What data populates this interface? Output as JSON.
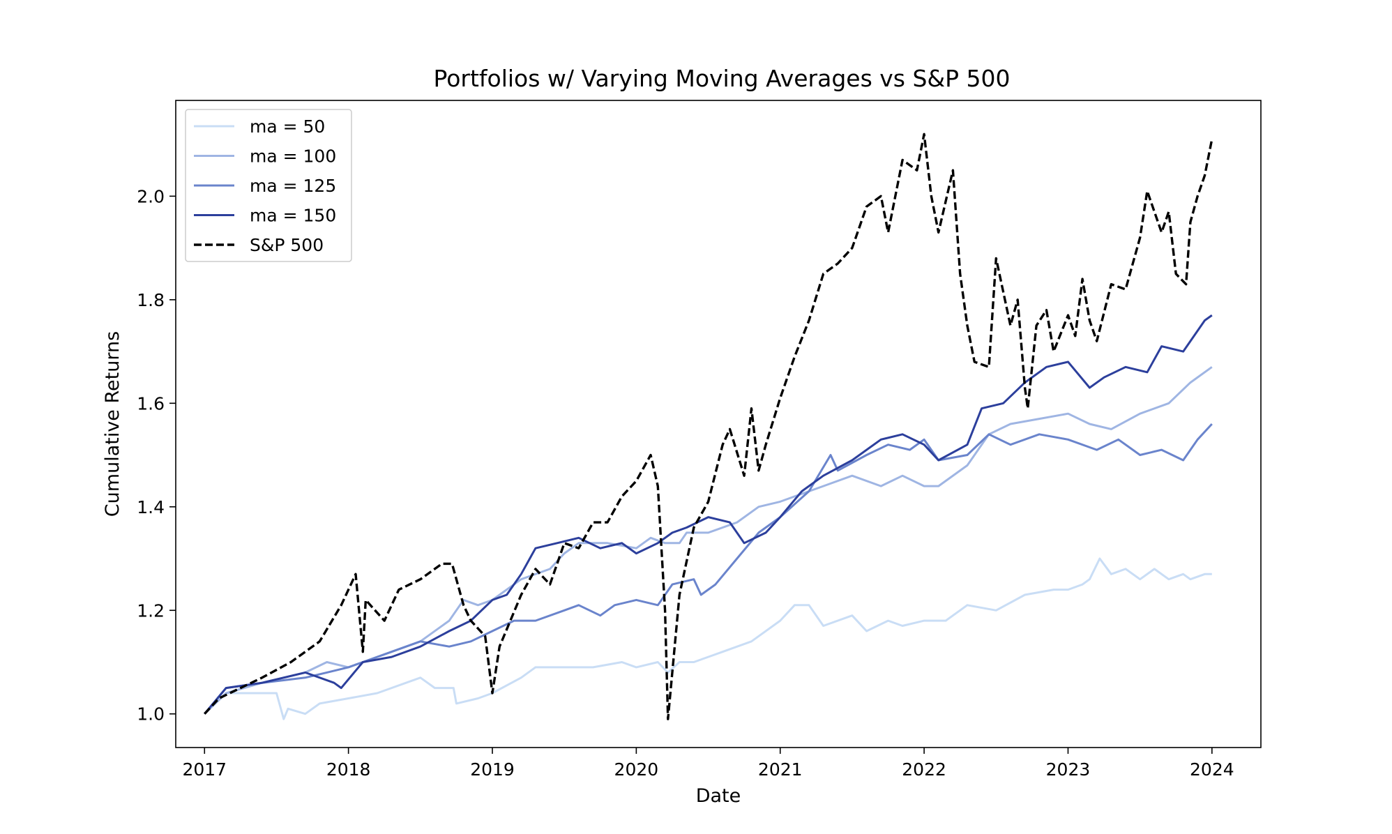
{
  "chart_data": {
    "type": "line",
    "title": "Portfolios w/ Varying Moving Averages vs S&P 500",
    "xlabel": "Date",
    "ylabel": "Cumulative Returns",
    "xlim": [
      2016.8,
      2024.34
    ],
    "ylim": [
      0.935,
      2.185
    ],
    "x_ticks": [
      2017,
      2018,
      2019,
      2020,
      2021,
      2022,
      2023,
      2024
    ],
    "x_tick_labels": [
      "2017",
      "2018",
      "2019",
      "2020",
      "2021",
      "2022",
      "2023",
      "2024"
    ],
    "y_ticks": [
      1.0,
      1.2,
      1.4,
      1.6,
      1.8,
      2.0
    ],
    "y_tick_labels": [
      "1.0",
      "1.2",
      "1.4",
      "1.6",
      "1.8",
      "2.0"
    ],
    "grid": false,
    "legend_position": "upper-left",
    "series": [
      {
        "name": "ma = 50",
        "color": "#c9ddf5",
        "dash": false,
        "x": [
          2017.0,
          2017.15,
          2017.3,
          2017.5,
          2017.55,
          2017.58,
          2017.7,
          2017.8,
          2018.0,
          2018.2,
          2018.4,
          2018.5,
          2018.6,
          2018.73,
          2018.75,
          2018.9,
          2019.0,
          2019.2,
          2019.3,
          2019.5,
          2019.7,
          2019.9,
          2020.0,
          2020.15,
          2020.22,
          2020.3,
          2020.4,
          2020.6,
          2020.8,
          2021.0,
          2021.1,
          2021.2,
          2021.3,
          2021.5,
          2021.6,
          2021.75,
          2021.85,
          2022.0,
          2022.15,
          2022.3,
          2022.5,
          2022.7,
          2022.9,
          2023.0,
          2023.1,
          2023.15,
          2023.22,
          2023.3,
          2023.4,
          2023.5,
          2023.6,
          2023.7,
          2023.8,
          2023.85,
          2023.95,
          2024.0
        ],
        "y": [
          1.0,
          1.04,
          1.04,
          1.04,
          0.99,
          1.01,
          1.0,
          1.02,
          1.03,
          1.04,
          1.06,
          1.07,
          1.05,
          1.05,
          1.02,
          1.03,
          1.04,
          1.07,
          1.09,
          1.09,
          1.09,
          1.1,
          1.09,
          1.1,
          1.08,
          1.1,
          1.1,
          1.12,
          1.14,
          1.18,
          1.21,
          1.21,
          1.17,
          1.19,
          1.16,
          1.18,
          1.17,
          1.18,
          1.18,
          1.21,
          1.2,
          1.23,
          1.24,
          1.24,
          1.25,
          1.26,
          1.3,
          1.27,
          1.28,
          1.26,
          1.28,
          1.26,
          1.27,
          1.26,
          1.27,
          1.27
        ]
      },
      {
        "name": "ma = 100",
        "color": "#9fb5e3",
        "dash": false,
        "x": [
          2017.0,
          2017.15,
          2017.4,
          2017.7,
          2017.85,
          2018.0,
          2018.1,
          2018.3,
          2018.5,
          2018.7,
          2018.8,
          2018.9,
          2019.0,
          2019.2,
          2019.4,
          2019.5,
          2019.6,
          2019.8,
          2020.0,
          2020.1,
          2020.2,
          2020.3,
          2020.35,
          2020.5,
          2020.7,
          2020.85,
          2021.0,
          2021.1,
          2021.3,
          2021.5,
          2021.7,
          2021.85,
          2022.0,
          2022.1,
          2022.3,
          2022.45,
          2022.6,
          2022.8,
          2023.0,
          2023.15,
          2023.3,
          2023.5,
          2023.7,
          2023.85,
          2024.0
        ],
        "y": [
          1.0,
          1.04,
          1.06,
          1.08,
          1.1,
          1.09,
          1.1,
          1.12,
          1.14,
          1.18,
          1.22,
          1.21,
          1.22,
          1.26,
          1.28,
          1.31,
          1.33,
          1.33,
          1.32,
          1.34,
          1.33,
          1.33,
          1.35,
          1.35,
          1.37,
          1.4,
          1.41,
          1.42,
          1.44,
          1.46,
          1.44,
          1.46,
          1.44,
          1.44,
          1.48,
          1.54,
          1.56,
          1.57,
          1.58,
          1.56,
          1.55,
          1.58,
          1.6,
          1.64,
          1.67
        ]
      },
      {
        "name": "ma = 125",
        "color": "#6a84cc",
        "dash": false,
        "x": [
          2017.0,
          2017.15,
          2017.4,
          2017.7,
          2017.85,
          2018.0,
          2018.1,
          2018.3,
          2018.5,
          2018.7,
          2018.85,
          2019.0,
          2019.15,
          2019.3,
          2019.5,
          2019.6,
          2019.75,
          2019.85,
          2020.0,
          2020.15,
          2020.25,
          2020.4,
          2020.45,
          2020.55,
          2020.7,
          2020.85,
          2021.0,
          2021.2,
          2021.35,
          2021.4,
          2021.6,
          2021.75,
          2021.9,
          2022.0,
          2022.1,
          2022.3,
          2022.45,
          2022.6,
          2022.8,
          2023.0,
          2023.2,
          2023.35,
          2023.5,
          2023.65,
          2023.8,
          2023.9,
          2024.0
        ],
        "y": [
          1.0,
          1.05,
          1.06,
          1.07,
          1.08,
          1.09,
          1.1,
          1.12,
          1.14,
          1.13,
          1.14,
          1.16,
          1.18,
          1.18,
          1.2,
          1.21,
          1.19,
          1.21,
          1.22,
          1.21,
          1.25,
          1.26,
          1.23,
          1.25,
          1.3,
          1.35,
          1.38,
          1.43,
          1.5,
          1.47,
          1.5,
          1.52,
          1.51,
          1.53,
          1.49,
          1.5,
          1.54,
          1.52,
          1.54,
          1.53,
          1.51,
          1.53,
          1.5,
          1.51,
          1.49,
          1.53,
          1.56
        ]
      },
      {
        "name": "ma = 150",
        "color": "#2c3f9c",
        "dash": false,
        "x": [
          2017.0,
          2017.15,
          2017.4,
          2017.7,
          2017.9,
          2017.95,
          2018.1,
          2018.3,
          2018.5,
          2018.7,
          2018.85,
          2019.0,
          2019.1,
          2019.2,
          2019.3,
          2019.45,
          2019.6,
          2019.75,
          2019.9,
          2020.0,
          2020.15,
          2020.25,
          2020.35,
          2020.5,
          2020.65,
          2020.75,
          2020.9,
          2021.0,
          2021.15,
          2021.3,
          2021.5,
          2021.7,
          2021.85,
          2022.0,
          2022.1,
          2022.3,
          2022.4,
          2022.55,
          2022.7,
          2022.85,
          2023.0,
          2023.15,
          2023.25,
          2023.4,
          2023.55,
          2023.65,
          2023.8,
          2023.95,
          2024.0
        ],
        "y": [
          1.0,
          1.05,
          1.06,
          1.08,
          1.06,
          1.05,
          1.1,
          1.11,
          1.13,
          1.16,
          1.18,
          1.22,
          1.23,
          1.27,
          1.32,
          1.33,
          1.34,
          1.32,
          1.33,
          1.31,
          1.33,
          1.35,
          1.36,
          1.38,
          1.37,
          1.33,
          1.35,
          1.38,
          1.43,
          1.46,
          1.49,
          1.53,
          1.54,
          1.52,
          1.49,
          1.52,
          1.59,
          1.6,
          1.64,
          1.67,
          1.68,
          1.63,
          1.65,
          1.67,
          1.66,
          1.71,
          1.7,
          1.76,
          1.77
        ]
      },
      {
        "name": "S&P 500",
        "color": "#000000",
        "dash": true,
        "x": [
          2017.0,
          2017.1,
          2017.25,
          2017.4,
          2017.6,
          2017.8,
          2017.95,
          2018.05,
          2018.1,
          2018.12,
          2018.25,
          2018.35,
          2018.5,
          2018.65,
          2018.72,
          2018.8,
          2018.85,
          2018.95,
          2019.0,
          2019.05,
          2019.2,
          2019.3,
          2019.4,
          2019.5,
          2019.6,
          2019.7,
          2019.8,
          2019.9,
          2020.0,
          2020.1,
          2020.15,
          2020.2,
          2020.22,
          2020.3,
          2020.4,
          2020.5,
          2020.6,
          2020.65,
          2020.75,
          2020.8,
          2020.85,
          2020.9,
          2021.0,
          2021.1,
          2021.2,
          2021.3,
          2021.4,
          2021.5,
          2021.6,
          2021.7,
          2021.75,
          2021.85,
          2021.95,
          2022.0,
          2022.05,
          2022.1,
          2022.2,
          2022.25,
          2022.3,
          2022.35,
          2022.45,
          2022.5,
          2022.6,
          2022.65,
          2022.7,
          2022.72,
          2022.78,
          2022.85,
          2022.9,
          2023.0,
          2023.05,
          2023.1,
          2023.15,
          2023.2,
          2023.3,
          2023.4,
          2023.5,
          2023.55,
          2023.65,
          2023.7,
          2023.75,
          2023.82,
          2023.85,
          2023.9,
          2023.95,
          2024.0
        ],
        "y": [
          1.0,
          1.03,
          1.05,
          1.07,
          1.1,
          1.14,
          1.21,
          1.27,
          1.12,
          1.22,
          1.18,
          1.24,
          1.26,
          1.29,
          1.29,
          1.21,
          1.18,
          1.15,
          1.04,
          1.13,
          1.23,
          1.28,
          1.25,
          1.33,
          1.32,
          1.37,
          1.37,
          1.42,
          1.45,
          1.5,
          1.44,
          1.2,
          0.99,
          1.23,
          1.36,
          1.41,
          1.52,
          1.55,
          1.46,
          1.59,
          1.47,
          1.52,
          1.61,
          1.69,
          1.76,
          1.85,
          1.87,
          1.9,
          1.98,
          2.0,
          1.93,
          2.07,
          2.05,
          2.12,
          2.0,
          1.93,
          2.05,
          1.85,
          1.75,
          1.68,
          1.67,
          1.88,
          1.75,
          1.8,
          1.63,
          1.59,
          1.75,
          1.78,
          1.7,
          1.77,
          1.73,
          1.84,
          1.76,
          1.72,
          1.83,
          1.82,
          1.92,
          2.01,
          1.93,
          1.97,
          1.85,
          1.83,
          1.95,
          2.0,
          2.04,
          2.11
        ]
      }
    ]
  }
}
